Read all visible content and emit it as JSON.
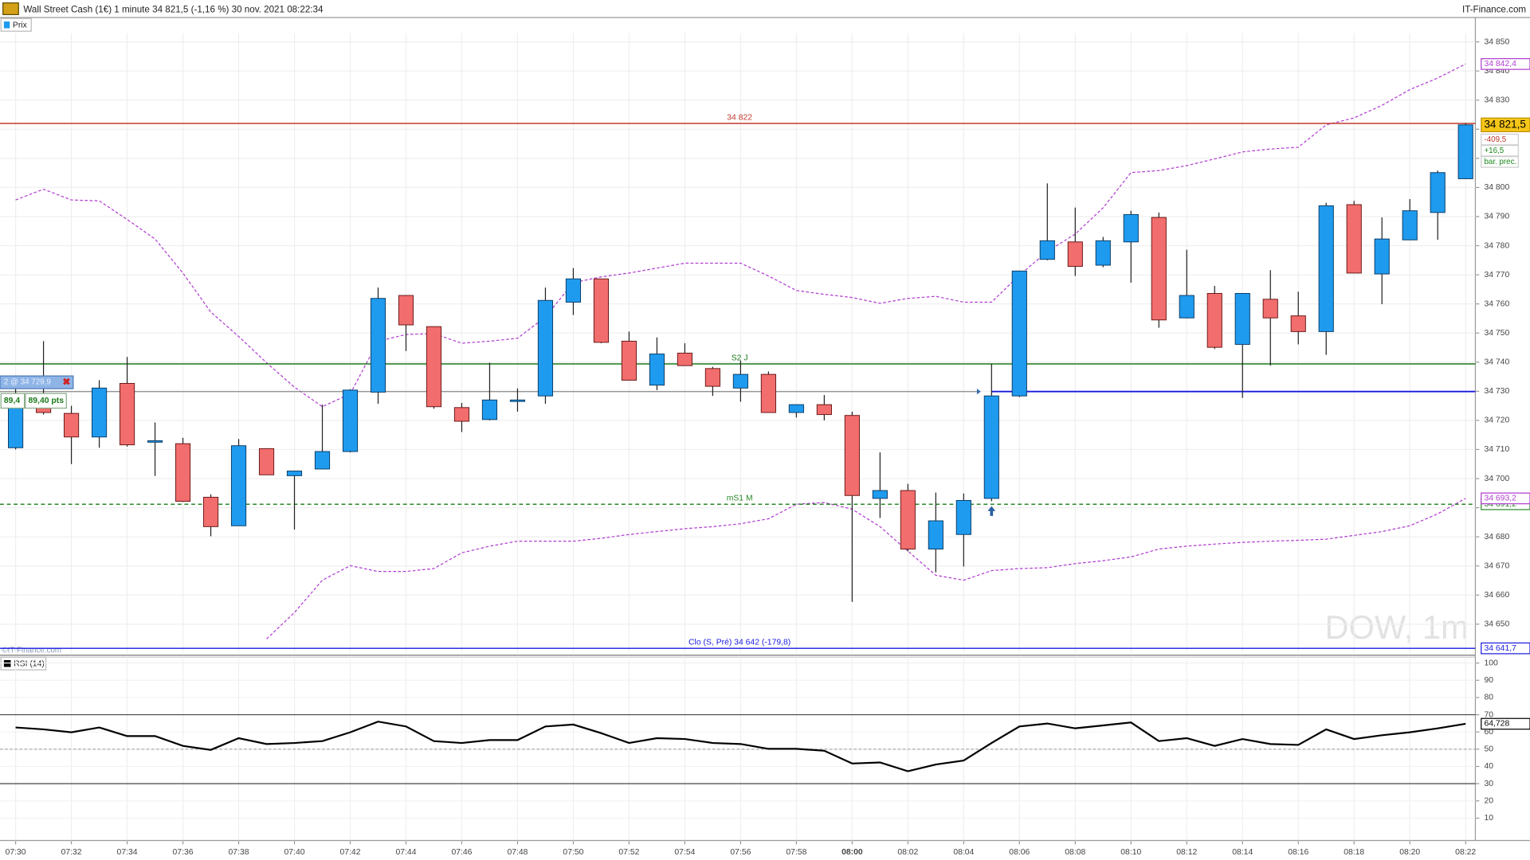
{
  "chart_data": [
    {
      "type": "candlestick",
      "title": "Wall Street Cash (1€) 1 minute 34 821,5 (-1,16 %) 30 nov. 2021 08:22:34",
      "source": "IT-Finance.com",
      "legend": "Prix",
      "watermark": "DOW, 1m",
      "copyright": "©IT-Finance.com",
      "categories": [
        "07:30",
        null,
        "07:32",
        null,
        "07:34",
        null,
        "07:36",
        null,
        "07:38",
        null,
        "07:40",
        null,
        "07:42",
        null,
        "07:44",
        null,
        "07:46",
        null,
        "07:48",
        null,
        "07:50",
        null,
        "07:52",
        null,
        "07:54",
        null,
        "07:56",
        null,
        "07:58",
        null,
        "08:00",
        null,
        "08:02",
        null,
        "08:04",
        null,
        "08:06",
        null,
        "08:08",
        null,
        "08:10",
        null,
        "08:12",
        null,
        "08:14",
        null,
        "08:16",
        null,
        "08:18",
        null,
        "08:20",
        null,
        "08:22"
      ],
      "bold_tick": 30,
      "open": [
        34710.6,
        34724.4,
        34722.4,
        34714.3,
        34732.7,
        34713,
        34712,
        34693.6,
        34683.8,
        34710.3,
        34701,
        34703.3,
        34709.3,
        34729.7,
        34762.9,
        34752.2,
        34724.4,
        34720.3,
        34727,
        34728.4,
        34760.6,
        34768.6,
        34747.2,
        34732.1,
        34743.1,
        34737.8,
        34731.1,
        34735.8,
        34722.7,
        34725.4,
        34721.7,
        34693.2,
        34695.9,
        34675.8,
        34680.8,
        34693.2,
        34728.4,
        34775.3,
        34781.3,
        34773.3,
        34781.3,
        34789.7,
        34755.2,
        34763.6,
        34746.1,
        34761.6,
        34755.9,
        34750.5,
        34794.1,
        34770.3,
        34782,
        34791.4,
        34803
      ],
      "high": [
        34735,
        34747.2,
        34725,
        34733.8,
        34741.8,
        34719.3,
        34714,
        34694.6,
        34713.6,
        34710.3,
        34702.6,
        34725.4,
        34730.7,
        34765.6,
        34763,
        34752.2,
        34726,
        34739.8,
        34731,
        34765.6,
        34772.3,
        34768.6,
        34750.5,
        34748.5,
        34746.5,
        34738.4,
        34740.5,
        34736.8,
        34725.4,
        34728.7,
        34723,
        34709,
        34698.2,
        34695.2,
        34694.9,
        34739.4,
        34771.3,
        34801.4,
        34793.1,
        34783,
        34792,
        34791.4,
        34778.6,
        34766.2,
        34763.6,
        34771.6,
        34764.2,
        34794.7,
        34795.4,
        34789.7,
        34796,
        34805.8,
        34822
      ],
      "low": [
        34710,
        34722,
        34705,
        34710.6,
        34711,
        34700.9,
        34692,
        34680.2,
        34683.8,
        34701.3,
        34682.5,
        34703.3,
        34709,
        34725.7,
        34743.8,
        34724,
        34716,
        34720,
        34723,
        34725.7,
        34756.2,
        34746.5,
        34733.8,
        34730.4,
        34738.8,
        34728.4,
        34726.4,
        34722.7,
        34721,
        34720,
        34657.7,
        34686.5,
        34675,
        34667.8,
        34669.8,
        34692.2,
        34728,
        34775,
        34769.6,
        34772.6,
        34767.3,
        34751.8,
        34755,
        34744.5,
        34727.7,
        34738.8,
        34746.1,
        34742.5,
        34770.6,
        34759.9,
        34782,
        34782,
        34803
      ],
      "close": [
        34724.4,
        34722.7,
        34714.3,
        34731.1,
        34711.6,
        34713,
        34692.2,
        34683.5,
        34711.3,
        34701.3,
        34702.6,
        34709.3,
        34730.4,
        34761.9,
        34752.8,
        34724.7,
        34719.7,
        34727,
        34727,
        34761.2,
        34768.6,
        34746.8,
        34733.8,
        34742.8,
        34738.8,
        34731.7,
        34735.8,
        34722.7,
        34725.4,
        34722,
        34694.2,
        34695.9,
        34675.8,
        34685.5,
        34692.5,
        34728.4,
        34771.3,
        34781.7,
        34772.9,
        34781.7,
        34790.7,
        34754.5,
        34762.9,
        34745.1,
        34763.6,
        34755.2,
        34750.5,
        34793.7,
        34770.6,
        34782.3,
        34792,
        34805.1,
        34821.5
      ],
      "close_label": "34 821,5",
      "up_color": "#1e9bef",
      "down_color": "#f26d6d",
      "info": [
        {
          "text": "-409,5",
          "color": "#c0392b"
        },
        {
          "text": "+16,5",
          "color": "#1a8a1a"
        },
        {
          "text": "bar. prec.",
          "color": "#1a8a1a"
        }
      ],
      "series": [
        {
          "color": "#b03cd0",
          "end_label": "34 842,4",
          "values": [
            34795.7,
            34799.4,
            34795.7,
            34795.4,
            34789.0,
            34782.3,
            34770.6,
            34757.2,
            34748.8,
            34739.8,
            34731.4,
            34724.7,
            34729.1,
            34747.2,
            34749.5,
            34749.8,
            34746.5,
            34747.2,
            34748.2,
            34755.5,
            34767.3,
            34769.3,
            34770.6,
            34772.3,
            34774.0,
            34774.0,
            34774.0,
            34769.6,
            34764.6,
            34763.3,
            34762.2,
            34760.2,
            34761.9,
            34762.6,
            34760.6,
            34760.6,
            34769.9,
            34778.0,
            34784.0,
            34793.0,
            34805.1,
            34805.8,
            34807.5,
            34809.8,
            34812.2,
            34813.2,
            34813.8,
            34821.5,
            34823.9,
            34828.2,
            34833.6,
            34837.6,
            34842.4
          ]
        },
        {
          "color": "#b03cd0",
          "end_label": "34 693,2",
          "values": [
            null,
            null,
            null,
            null,
            null,
            null,
            null,
            null,
            null,
            34644.9,
            34654.0,
            34665.1,
            34670.1,
            34668.1,
            34668.1,
            34669.1,
            34674.5,
            34676.8,
            34678.5,
            34678.5,
            34678.5,
            34679.5,
            34680.8,
            34681.8,
            34682.8,
            34683.5,
            34684.5,
            34686.2,
            34691.2,
            34691.8,
            34689.5,
            34683.5,
            34675.1,
            34666.8,
            34665.1,
            34668.4,
            34669.1,
            34669.4,
            34670.8,
            34671.8,
            34673.1,
            34675.8,
            34676.8,
            34677.5,
            34678.1,
            34678.5,
            34678.8,
            34679.2,
            34680.5,
            34681.8,
            34683.8,
            34687.9,
            34693.2
          ]
        }
      ],
      "levels": [
        {
          "value": 34822,
          "label": "34 822",
          "color": "#c0392b"
        },
        {
          "value": 34739.4,
          "label": "S2 J",
          "color": "#1a7a1a"
        },
        {
          "value": 34691.2,
          "label": "mS1 M",
          "color": "#2a8a2a",
          "dashed": true,
          "axis_label": "34 691,2"
        },
        {
          "value": 34641.7,
          "label": "Clo (S, Pré) 34 642 (-179,8)",
          "color": "#1a1adf",
          "axis_label": "34 641,7"
        }
      ],
      "position": {
        "value": 34729.9,
        "label": "2 @ 34 729,9",
        "gain": "89,4",
        "gain_points": "89,40 pts",
        "entry": 35,
        "color": "#1a1adf"
      },
      "ylim": [
        34640,
        34853
      ],
      "yticks": [
        {
          "value": 34650,
          "label": "34 650"
        },
        {
          "value": 34660,
          "label": "34 660"
        },
        {
          "value": 34670,
          "label": "34 670"
        },
        {
          "value": 34680,
          "label": "34 680"
        },
        {
          "value": 34690,
          "label": "34 690"
        },
        {
          "value": 34700,
          "label": "34 700"
        },
        {
          "value": 34710,
          "label": "34 710"
        },
        {
          "value": 34720,
          "label": "34 720"
        },
        {
          "value": 34730,
          "label": "34 730"
        },
        {
          "value": 34740,
          "label": "34 740"
        },
        {
          "value": 34750,
          "label": "34 750"
        },
        {
          "value": 34760,
          "label": "34 760"
        },
        {
          "value": 34770,
          "label": "34 770"
        },
        {
          "value": 34780,
          "label": "34 780"
        },
        {
          "value": 34790,
          "label": "34 790"
        },
        {
          "value": 34800,
          "label": "34 800"
        },
        {
          "value": 34810,
          "label": "34 810"
        },
        {
          "value": 34820,
          "label": "34 820"
        },
        {
          "value": 34830,
          "label": "34 830"
        },
        {
          "value": 34840,
          "label": "34 840"
        },
        {
          "value": 34850,
          "label": "34 850"
        }
      ],
      "grid": true
    },
    {
      "type": "line",
      "legend": "RSI (14)",
      "color": "#000000",
      "values": [
        62.6,
        61.5,
        59.8,
        62.6,
        57.6,
        57.6,
        51.9,
        49.6,
        56.4,
        53.0,
        53.6,
        54.7,
        59.8,
        66.0,
        63.2,
        54.7,
        53.6,
        55.3,
        55.3,
        63.2,
        64.3,
        59.3,
        53.6,
        56.4,
        55.9,
        53.6,
        53.0,
        50.2,
        50.2,
        49.1,
        41.7,
        42.3,
        37.2,
        41.1,
        43.4,
        53.6,
        63.2,
        64.9,
        62.1,
        63.8,
        65.5,
        54.7,
        56.4,
        51.9,
        55.9,
        53.0,
        52.5,
        61.5,
        55.9,
        58.1,
        59.8,
        62.1,
        64.728
      ],
      "end_label": "64,728",
      "levels": [
        70,
        50,
        30
      ],
      "ylim": [
        0,
        100
      ],
      "yticks": [
        10,
        20,
        30,
        40,
        50,
        60,
        70,
        80,
        90,
        100
      ],
      "grid": true
    }
  ]
}
